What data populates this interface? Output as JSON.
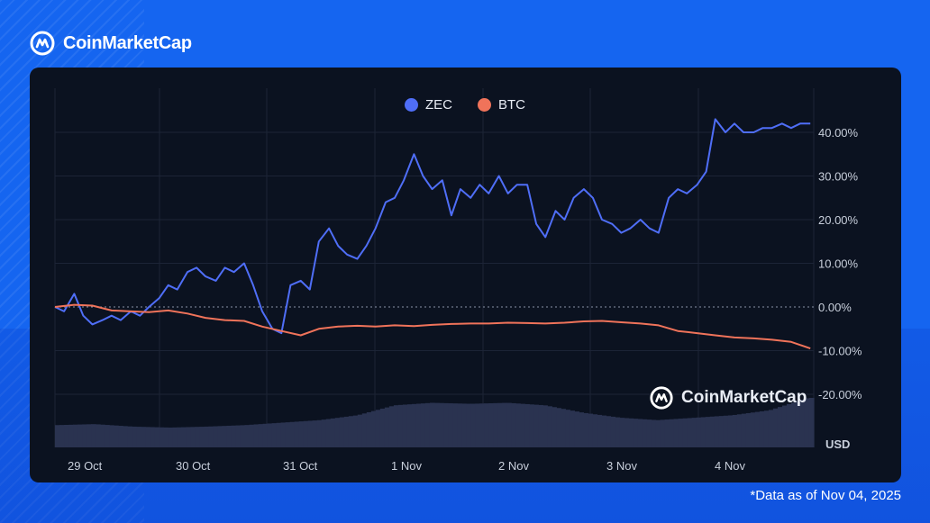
{
  "brand": {
    "name": "CoinMarketCap",
    "icon": "coinmarketcap-logo-icon"
  },
  "watermark": {
    "name": "CoinMarketCap"
  },
  "footnote": "*Data as of Nov 04, 2025",
  "colors": {
    "zec": "#4f6ef7",
    "btc": "#f0735a",
    "background": "#1565f0",
    "panel": "#0b1220",
    "volume": "#2a3350"
  },
  "chart_data": {
    "type": "line",
    "title": "",
    "legend": [
      "ZEC",
      "BTC"
    ],
    "legend_position": "top-center",
    "x_tick_labels": [
      "29 Oct",
      "30 Oct",
      "31 Oct",
      "1 Nov",
      "2 Nov",
      "3 Nov",
      "4 Nov"
    ],
    "y_tick_labels": [
      "40.00%",
      "30.00%",
      "20.00%",
      "10.00%",
      "0.00%",
      "-10.00%",
      "-20.00%"
    ],
    "y_ticks": [
      40,
      30,
      20,
      10,
      0,
      -10,
      -20
    ],
    "ylim": [
      -20,
      45
    ],
    "xlim": [
      0,
      6.7
    ],
    "ylabel": "",
    "volume_label": "USD",
    "grid": true,
    "series": [
      {
        "name": "ZEC",
        "x": [
          0,
          0.08,
          0.17,
          0.25,
          0.33,
          0.42,
          0.5,
          0.58,
          0.67,
          0.75,
          0.83,
          0.92,
          1.0,
          1.08,
          1.17,
          1.25,
          1.33,
          1.42,
          1.5,
          1.58,
          1.67,
          1.75,
          1.83,
          1.92,
          2.0,
          2.08,
          2.17,
          2.25,
          2.33,
          2.42,
          2.5,
          2.58,
          2.67,
          2.75,
          2.83,
          2.92,
          3.0,
          3.08,
          3.17,
          3.25,
          3.33,
          3.42,
          3.5,
          3.58,
          3.67,
          3.75,
          3.83,
          3.92,
          4.0,
          4.08,
          4.17,
          4.25,
          4.33,
          4.42,
          4.5,
          4.58,
          4.67,
          4.75,
          4.83,
          4.92,
          5.0,
          5.08,
          5.17,
          5.25,
          5.33,
          5.42,
          5.5,
          5.58,
          5.67,
          5.75,
          5.83,
          5.92,
          6.0,
          6.08,
          6.17,
          6.25,
          6.33,
          6.42,
          6.5,
          6.58,
          6.67
        ],
        "values": [
          0,
          -1,
          3,
          -2,
          -4,
          -3,
          -2,
          -3,
          -1,
          -2,
          0,
          2,
          5,
          4,
          8,
          9,
          7,
          6,
          9,
          8,
          10,
          5,
          -1,
          -5,
          -6,
          5,
          6,
          4,
          15,
          18,
          14,
          12,
          11,
          14,
          18,
          24,
          25,
          29,
          35,
          30,
          27,
          29,
          21,
          27,
          25,
          28,
          26,
          30,
          26,
          28,
          28,
          19,
          16,
          22,
          20,
          25,
          27,
          25,
          20,
          19,
          17,
          18,
          20,
          18,
          17,
          25,
          27,
          26,
          28,
          31,
          43,
          40,
          42,
          40,
          40,
          41,
          41,
          42,
          41,
          42,
          42
        ]
      },
      {
        "name": "BTC",
        "x": [
          0,
          0.17,
          0.33,
          0.5,
          0.67,
          0.83,
          1.0,
          1.17,
          1.33,
          1.5,
          1.67,
          1.83,
          2.0,
          2.17,
          2.33,
          2.5,
          2.67,
          2.83,
          3.0,
          3.17,
          3.33,
          3.5,
          3.67,
          3.83,
          4.0,
          4.17,
          4.33,
          4.5,
          4.67,
          4.83,
          5.0,
          5.17,
          5.33,
          5.5,
          5.67,
          5.83,
          6.0,
          6.17,
          6.33,
          6.5,
          6.67
        ],
        "values": [
          0,
          0.5,
          0.3,
          -0.8,
          -1.0,
          -1.2,
          -0.8,
          -1.5,
          -2.5,
          -3.0,
          -3.2,
          -4.5,
          -5.5,
          -6.5,
          -5.0,
          -4.5,
          -4.3,
          -4.5,
          -4.2,
          -4.4,
          -4.1,
          -3.9,
          -3.8,
          -3.8,
          -3.6,
          -3.7,
          -3.8,
          -3.6,
          -3.3,
          -3.2,
          -3.5,
          -3.8,
          -4.2,
          -5.5,
          -6.0,
          -6.5,
          -7.0,
          -7.2,
          -7.5,
          -8.0,
          -9.5
        ]
      }
    ],
    "volume": {
      "x": [
        0,
        0.33,
        0.67,
        1.0,
        1.33,
        1.67,
        2.0,
        2.33,
        2.67,
        3.0,
        3.33,
        3.67,
        4.0,
        4.33,
        4.67,
        5.0,
        5.33,
        5.67,
        6.0,
        6.33,
        6.67
      ],
      "values": [
        0.45,
        0.47,
        0.42,
        0.4,
        0.42,
        0.45,
        0.5,
        0.55,
        0.65,
        0.85,
        0.9,
        0.88,
        0.9,
        0.85,
        0.7,
        0.6,
        0.55,
        0.6,
        0.65,
        0.75,
        1.0
      ],
      "fill": "#2a3350"
    }
  }
}
